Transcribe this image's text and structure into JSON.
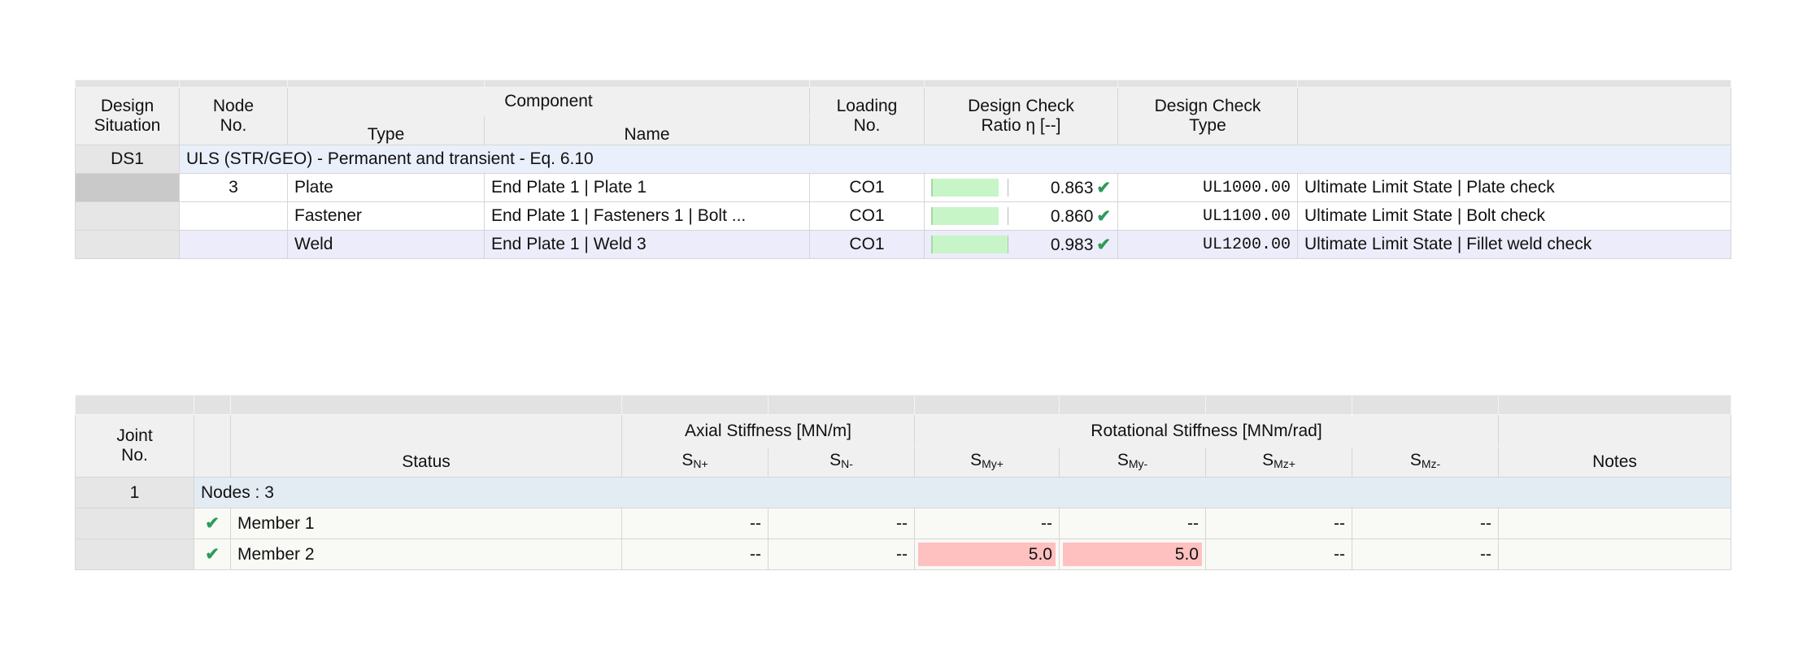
{
  "design_table": {
    "headers": {
      "design_situation": [
        "Design",
        "Situation"
      ],
      "node_no": [
        "Node",
        "No."
      ],
      "component": "Component",
      "type": "Type",
      "name": "Name",
      "loading_no": [
        "Loading",
        "No."
      ],
      "ratio": [
        "Design Check",
        "Ratio η [--]"
      ],
      "check_type": [
        "Design Check",
        "Type"
      ]
    },
    "group": {
      "situation": "DS1",
      "label": "ULS (STR/GEO) - Permanent and transient - Eq. 6.10"
    },
    "rows": [
      {
        "node": "3",
        "type": "Plate",
        "name": "End Plate 1 | Plate 1",
        "loading": "CO1",
        "ratio": "0.863",
        "ratio_value": 0.863,
        "code": "UL1000.00",
        "description": "Ultimate Limit State | Plate check"
      },
      {
        "node": "",
        "type": "Fastener",
        "name": "End Plate 1 | Fasteners 1 | Bolt ...",
        "loading": "CO1",
        "ratio": "0.860",
        "ratio_value": 0.86,
        "code": "UL1100.00",
        "description": "Ultimate Limit State | Bolt check"
      },
      {
        "node": "",
        "type": "Weld",
        "name": "End Plate 1 | Weld 3",
        "loading": "CO1",
        "ratio": "0.983",
        "ratio_value": 0.983,
        "code": "UL1200.00",
        "description": "Ultimate Limit State | Fillet weld check"
      }
    ],
    "check_icon": "check-icon"
  },
  "stiffness_table": {
    "headers": {
      "joint_no": [
        "Joint",
        "No."
      ],
      "status": "Status",
      "axial": "Axial Stiffness [MN/m]",
      "rotational": "Rotational Stiffness [MNm/rad]",
      "notes": "Notes",
      "sub": [
        {
          "main": "S",
          "sub": "N+"
        },
        {
          "main": "S",
          "sub": "N-"
        },
        {
          "main": "S",
          "sub": "My+"
        },
        {
          "main": "S",
          "sub": "My-"
        },
        {
          "main": "S",
          "sub": "Mz+"
        },
        {
          "main": "S",
          "sub": "Mz-"
        }
      ]
    },
    "group": {
      "joint": "1",
      "label": "Nodes : 3"
    },
    "rows": [
      {
        "status": "Member 1",
        "values": [
          "--",
          "--",
          "--",
          "--",
          "--",
          "--"
        ],
        "notes": ""
      },
      {
        "status": "Member 2",
        "values": [
          "--",
          "--",
          "5.0",
          "5.0",
          "--",
          "--"
        ],
        "notes": ""
      }
    ],
    "highlight_color": "#ffc0c0"
  },
  "colors": {
    "ok": "#2e9a5a",
    "ratio_bar": "#c8f5c8",
    "group_row": "#e9f0fb"
  }
}
